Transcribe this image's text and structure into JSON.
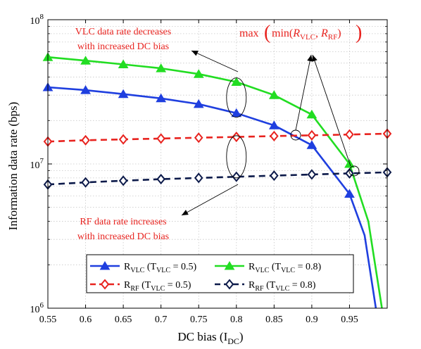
{
  "chart_data": {
    "type": "line",
    "xlabel": "DC bias (I_DC)",
    "xlabel_main": "DC bias (I",
    "xlabel_sub": "DC",
    "xlabel_close": ")",
    "ylabel": "Information data rate (bps)",
    "xlim": [
      0.55,
      1.0
    ],
    "ylim": [
      1000000,
      100000000
    ],
    "yscale": "log",
    "grid": true,
    "x_ticks": [
      0.55,
      0.6,
      0.65,
      0.7,
      0.75,
      0.8,
      0.85,
      0.9,
      0.95
    ],
    "x_tick_labels": [
      "0.55",
      "0.6",
      "0.65",
      "0.7",
      "0.75",
      "0.8",
      "0.85",
      "0.9",
      "0.95"
    ],
    "y_ticks": [
      {
        "value": 1000000,
        "base": "10",
        "exp": "6"
      },
      {
        "value": 10000000,
        "base": "10",
        "exp": "7"
      },
      {
        "value": 100000000,
        "base": "10",
        "exp": "8"
      }
    ],
    "series": [
      {
        "name": "R_VLC (T_VLC = 0.5)",
        "color": "#1f3fdf",
        "dash": "solid",
        "marker": "triangle",
        "x": [
          0.55,
          0.6,
          0.65,
          0.7,
          0.75,
          0.8,
          0.85,
          0.9,
          0.95,
          0.97,
          0.985
        ],
        "y": [
          34000000,
          32500000,
          30500000,
          28500000,
          26000000,
          22500000,
          18500000,
          13500000,
          6200000,
          3200000,
          1000000
        ],
        "marker_x": [
          0.55,
          0.6,
          0.65,
          0.7,
          0.75,
          0.8,
          0.85,
          0.9,
          0.95
        ]
      },
      {
        "name": "R_VLC (T_VLC = 0.8)",
        "color": "#22dd22",
        "dash": "solid",
        "marker": "triangle",
        "x": [
          0.55,
          0.6,
          0.65,
          0.7,
          0.75,
          0.8,
          0.85,
          0.9,
          0.95,
          0.975,
          0.993
        ],
        "y": [
          55000000,
          52000000,
          49000000,
          46000000,
          42000000,
          37000000,
          30000000,
          22000000,
          10000000,
          4000000,
          1000000
        ],
        "marker_x": [
          0.55,
          0.6,
          0.65,
          0.7,
          0.75,
          0.8,
          0.85,
          0.9,
          0.95
        ]
      },
      {
        "name": "R_RF (T_VLC = 0.5)",
        "color": "#e8231f",
        "dash": "dashed",
        "marker": "diamond",
        "x": [
          0.55,
          0.6,
          0.65,
          0.7,
          0.75,
          0.8,
          0.85,
          0.9,
          0.95,
          1.0
        ],
        "y": [
          14300000,
          14600000,
          14800000,
          15000000,
          15200000,
          15400000,
          15600000,
          15800000,
          16000000,
          16200000
        ],
        "marker_x": [
          0.55,
          0.6,
          0.65,
          0.7,
          0.75,
          0.8,
          0.85,
          0.9,
          0.95,
          1.0
        ]
      },
      {
        "name": "R_RF (T_VLC = 0.8)",
        "color": "#0c1a4a",
        "dash": "dashed",
        "marker": "diamond",
        "x": [
          0.55,
          0.6,
          0.65,
          0.7,
          0.75,
          0.8,
          0.85,
          0.9,
          0.95,
          1.0
        ],
        "y": [
          7200000,
          7450000,
          7650000,
          7850000,
          8000000,
          8150000,
          8300000,
          8450000,
          8600000,
          8750000
        ],
        "marker_x": [
          0.55,
          0.6,
          0.65,
          0.7,
          0.75,
          0.8,
          0.85,
          0.9,
          0.95,
          1.0
        ]
      }
    ],
    "legend": {
      "placement": "bottom-left",
      "entries": [
        {
          "series": 0,
          "main": "R",
          "sub": "VLC",
          "paren": " (T",
          "paren_sub": "VLC",
          "tail": " = 0.5)"
        },
        {
          "series": 1,
          "main": "R",
          "sub": "VLC",
          "paren": " (T",
          "paren_sub": "VLC",
          "tail": " = 0.8)"
        },
        {
          "series": 2,
          "main": "R",
          "sub": "RF",
          "paren": " (T",
          "paren_sub": "VLC",
          "tail": " = 0.5)"
        },
        {
          "series": 3,
          "main": "R",
          "sub": "RF",
          "paren": " (T",
          "paren_sub": "VLC",
          "tail": " = 0.8)"
        }
      ]
    },
    "annotations": {
      "vlc_text": [
        "VLC data rate decreases",
        "with increased DC bias"
      ],
      "rf_text": [
        "RF data rate increases",
        "with increased DC bias"
      ],
      "max_label": "max(min(R_VLC, R_RF))",
      "max_parts": {
        "fn1": "max",
        "fn2": "min",
        "r": "R",
        "sub1": "VLC",
        "comma": ", ",
        "sub2": "RF"
      },
      "color": "#e8231f"
    }
  }
}
